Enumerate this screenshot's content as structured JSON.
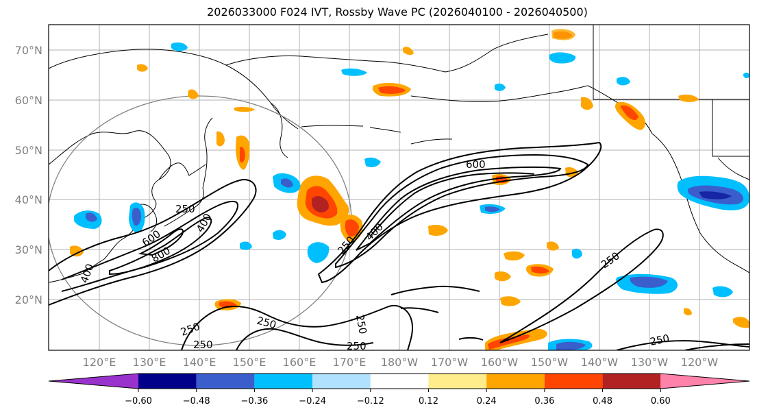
{
  "title": "2026033000 F024 IVT, Rossby Wave PC (2026040100 - 2026040500)",
  "lat_labels": [
    "70°N",
    "60°N",
    "50°N",
    "40°N",
    "30°N",
    "20°N"
  ],
  "lon_labels": [
    "120°E",
    "130°E",
    "140°E",
    "150°E",
    "160°E",
    "170°E",
    "180°W",
    "170°W",
    "160°W",
    "150°W",
    "140°W",
    "130°W",
    "120°W"
  ],
  "colorbar": {
    "colors": [
      "#9932cc",
      "#00008b",
      "#3a5fcd",
      "#00bfff",
      "#b0e2ff",
      "#ffffff",
      "#ffec8b",
      "#ffa500",
      "#ff4500",
      "#b22222",
      "#ff82ab"
    ],
    "tick_labels": [
      "−0.60",
      "−0.48",
      "−0.36",
      "−0.24",
      "−0.12",
      "0.12",
      "0.24",
      "0.36",
      "0.48",
      "0.60"
    ]
  },
  "contour_labels": {
    "c1": "250",
    "c2": "400",
    "c3": "600",
    "c4": "800",
    "c5": "400",
    "c6": "600",
    "c7": "400",
    "c8": "250",
    "c9": "250",
    "c10": "250",
    "c11": "250",
    "c12": "250",
    "c13": "250",
    "c14": "250",
    "c15": "250"
  }
}
